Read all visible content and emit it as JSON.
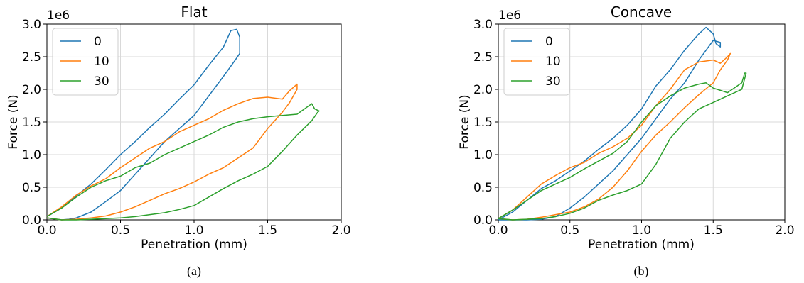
{
  "captions": [
    "(a)",
    "(b)"
  ],
  "series_colors": [
    "#1f77b4",
    "#ff7f0e",
    "#2ca02c"
  ],
  "chart_data": [
    {
      "type": "line",
      "title": "Flat",
      "xlabel": "Penetration (mm)",
      "ylabel": "Force (N)",
      "y_scale_label": "1e6",
      "xlim": [
        0,
        2
      ],
      "ylim": [
        0,
        3
      ],
      "xticks": [
        "0.0",
        "0.5",
        "1.0",
        "1.5",
        "2.0"
      ],
      "yticks": [
        "0.0",
        "0.5",
        "1.0",
        "1.5",
        "2.0",
        "2.5",
        "3.0"
      ],
      "grid": true,
      "legend_position": "top-left",
      "series": [
        {
          "name": "0",
          "x": [
            0.0,
            0.1,
            0.2,
            0.3,
            0.4,
            0.5,
            0.6,
            0.7,
            0.8,
            0.9,
            1.0,
            1.1,
            1.2,
            1.25,
            1.29,
            1.31,
            1.31,
            1.28,
            1.2,
            1.1,
            1.0,
            0.9,
            0.8,
            0.7,
            0.6,
            0.5,
            0.4,
            0.3,
            0.2,
            0.15,
            0.1,
            0.0
          ],
          "y": [
            0.05,
            0.18,
            0.37,
            0.55,
            0.77,
            1.0,
            1.2,
            1.42,
            1.62,
            1.85,
            2.07,
            2.37,
            2.65,
            2.9,
            2.92,
            2.8,
            2.55,
            2.45,
            2.2,
            1.9,
            1.6,
            1.4,
            1.2,
            0.95,
            0.7,
            0.45,
            0.28,
            0.12,
            0.03,
            0.01,
            0.0,
            0.03
          ]
        },
        {
          "name": "10",
          "x": [
            0.0,
            0.1,
            0.2,
            0.3,
            0.4,
            0.5,
            0.6,
            0.7,
            0.8,
            0.9,
            1.0,
            1.1,
            1.2,
            1.3,
            1.4,
            1.5,
            1.6,
            1.65,
            1.7,
            1.7,
            1.65,
            1.6,
            1.5,
            1.4,
            1.3,
            1.2,
            1.1,
            1.0,
            0.9,
            0.8,
            0.7,
            0.6,
            0.5,
            0.4,
            0.3,
            0.2,
            0.1,
            0.0
          ],
          "y": [
            0.05,
            0.2,
            0.38,
            0.52,
            0.63,
            0.8,
            0.95,
            1.1,
            1.2,
            1.35,
            1.45,
            1.55,
            1.68,
            1.78,
            1.86,
            1.88,
            1.85,
            1.98,
            2.08,
            2.0,
            1.8,
            1.65,
            1.4,
            1.1,
            0.95,
            0.8,
            0.7,
            0.58,
            0.48,
            0.4,
            0.3,
            0.2,
            0.12,
            0.06,
            0.03,
            0.01,
            0.0,
            0.03
          ]
        },
        {
          "name": "30",
          "x": [
            0.0,
            0.1,
            0.2,
            0.3,
            0.4,
            0.5,
            0.6,
            0.7,
            0.8,
            0.9,
            1.0,
            1.1,
            1.2,
            1.3,
            1.4,
            1.5,
            1.6,
            1.7,
            1.8,
            1.82,
            1.85,
            1.84,
            1.8,
            1.7,
            1.6,
            1.5,
            1.4,
            1.3,
            1.2,
            1.1,
            1.0,
            0.9,
            0.8,
            0.7,
            0.6,
            0.5,
            0.4,
            0.3,
            0.2,
            0.1,
            0.0
          ],
          "y": [
            0.05,
            0.18,
            0.35,
            0.5,
            0.6,
            0.67,
            0.8,
            0.87,
            1.0,
            1.1,
            1.2,
            1.3,
            1.42,
            1.5,
            1.55,
            1.58,
            1.6,
            1.62,
            1.78,
            1.7,
            1.67,
            1.65,
            1.52,
            1.3,
            1.05,
            0.82,
            0.7,
            0.6,
            0.48,
            0.35,
            0.22,
            0.16,
            0.11,
            0.08,
            0.05,
            0.03,
            0.02,
            0.01,
            0.0,
            0.0,
            0.03
          ]
        }
      ]
    },
    {
      "type": "line",
      "title": "Concave",
      "xlabel": "Penetration (mm)",
      "ylabel": "Force (N)",
      "y_scale_label": "1e6",
      "xlim": [
        0,
        2
      ],
      "ylim": [
        0,
        3
      ],
      "xticks": [
        "0.0",
        "0.5",
        "1.0",
        "1.5",
        "2.0"
      ],
      "yticks": [
        "0.0",
        "0.5",
        "1.0",
        "1.5",
        "2.0",
        "2.5",
        "3.0"
      ],
      "grid": true,
      "legend_position": "top-left",
      "series": [
        {
          "name": "0",
          "x": [
            0.0,
            0.1,
            0.2,
            0.3,
            0.4,
            0.5,
            0.6,
            0.7,
            0.8,
            0.9,
            1.0,
            1.1,
            1.2,
            1.3,
            1.4,
            1.45,
            1.5,
            1.52,
            1.55,
            1.55,
            1.5,
            1.45,
            1.4,
            1.3,
            1.2,
            1.1,
            1.0,
            0.9,
            0.8,
            0.7,
            0.6,
            0.5,
            0.4,
            0.3,
            0.2,
            0.1,
            0.0
          ],
          "y": [
            0.0,
            0.12,
            0.3,
            0.48,
            0.6,
            0.75,
            0.9,
            1.08,
            1.25,
            1.45,
            1.7,
            2.05,
            2.3,
            2.6,
            2.85,
            2.95,
            2.85,
            2.7,
            2.65,
            2.72,
            2.75,
            2.6,
            2.45,
            2.1,
            1.85,
            1.55,
            1.25,
            1.0,
            0.75,
            0.55,
            0.35,
            0.18,
            0.05,
            0.01,
            0.0,
            0.0,
            0.0
          ]
        },
        {
          "name": "10",
          "x": [
            0.0,
            0.1,
            0.2,
            0.3,
            0.4,
            0.5,
            0.6,
            0.7,
            0.8,
            0.9,
            1.0,
            1.1,
            1.2,
            1.3,
            1.4,
            1.5,
            1.55,
            1.6,
            1.62,
            1.6,
            1.55,
            1.5,
            1.4,
            1.3,
            1.2,
            1.1,
            1.0,
            0.9,
            0.8,
            0.7,
            0.6,
            0.5,
            0.4,
            0.3,
            0.2,
            0.1,
            0.0
          ],
          "y": [
            0.02,
            0.15,
            0.35,
            0.55,
            0.68,
            0.8,
            0.88,
            1.02,
            1.12,
            1.25,
            1.45,
            1.75,
            2.0,
            2.3,
            2.42,
            2.45,
            2.4,
            2.5,
            2.55,
            2.45,
            2.3,
            2.1,
            1.92,
            1.72,
            1.5,
            1.3,
            1.05,
            0.75,
            0.5,
            0.32,
            0.2,
            0.12,
            0.08,
            0.04,
            0.01,
            0.0,
            0.02
          ]
        },
        {
          "name": "30",
          "x": [
            0.0,
            0.1,
            0.2,
            0.3,
            0.4,
            0.5,
            0.6,
            0.7,
            0.8,
            0.9,
            1.0,
            1.1,
            1.2,
            1.3,
            1.4,
            1.45,
            1.5,
            1.6,
            1.7,
            1.72,
            1.73,
            1.7,
            1.6,
            1.5,
            1.4,
            1.3,
            1.2,
            1.1,
            1.0,
            0.9,
            0.8,
            0.7,
            0.6,
            0.5,
            0.4,
            0.3,
            0.2,
            0.1,
            0.0
          ],
          "y": [
            0.02,
            0.15,
            0.3,
            0.45,
            0.55,
            0.65,
            0.78,
            0.9,
            1.02,
            1.2,
            1.5,
            1.75,
            1.9,
            2.02,
            2.08,
            2.1,
            2.02,
            1.95,
            2.1,
            2.25,
            2.25,
            2.0,
            1.9,
            1.8,
            1.7,
            1.5,
            1.25,
            0.85,
            0.55,
            0.45,
            0.38,
            0.3,
            0.18,
            0.1,
            0.05,
            0.02,
            0.01,
            0.0,
            0.02
          ]
        }
      ]
    }
  ]
}
